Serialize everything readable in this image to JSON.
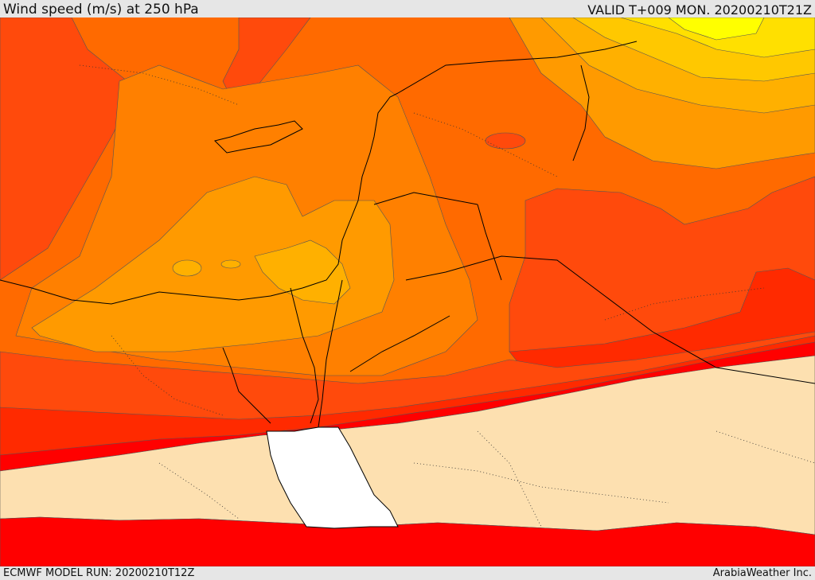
{
  "header": {
    "title": "Wind speed (m/s) at 250 hPa",
    "valid": "VALID T+009 MON. 20200210T21Z"
  },
  "footer": {
    "model_run": "ECMWF MODEL RUN: 20200210T12Z",
    "credit": "ArabiaWeather Inc."
  },
  "map": {
    "field": "Wind speed (m/s) at 250 hPa",
    "colors": {
      "calm": "#fde0b0",
      "band_red": "#ff0000",
      "band_red_orange": "#ff2a00",
      "band_dark_orange": "#ff4a0c",
      "band_orange": "#ff6a00",
      "band_light_orange": "#ff8000",
      "band_amber": "#ff9a00",
      "band_gold": "#ffb000",
      "band_yellow_orange": "#ffc800",
      "band_yellow": "#ffe000",
      "band_bright_yellow": "#ffff00",
      "red_sea": "#ffffff",
      "coastline": "#000000"
    }
  }
}
